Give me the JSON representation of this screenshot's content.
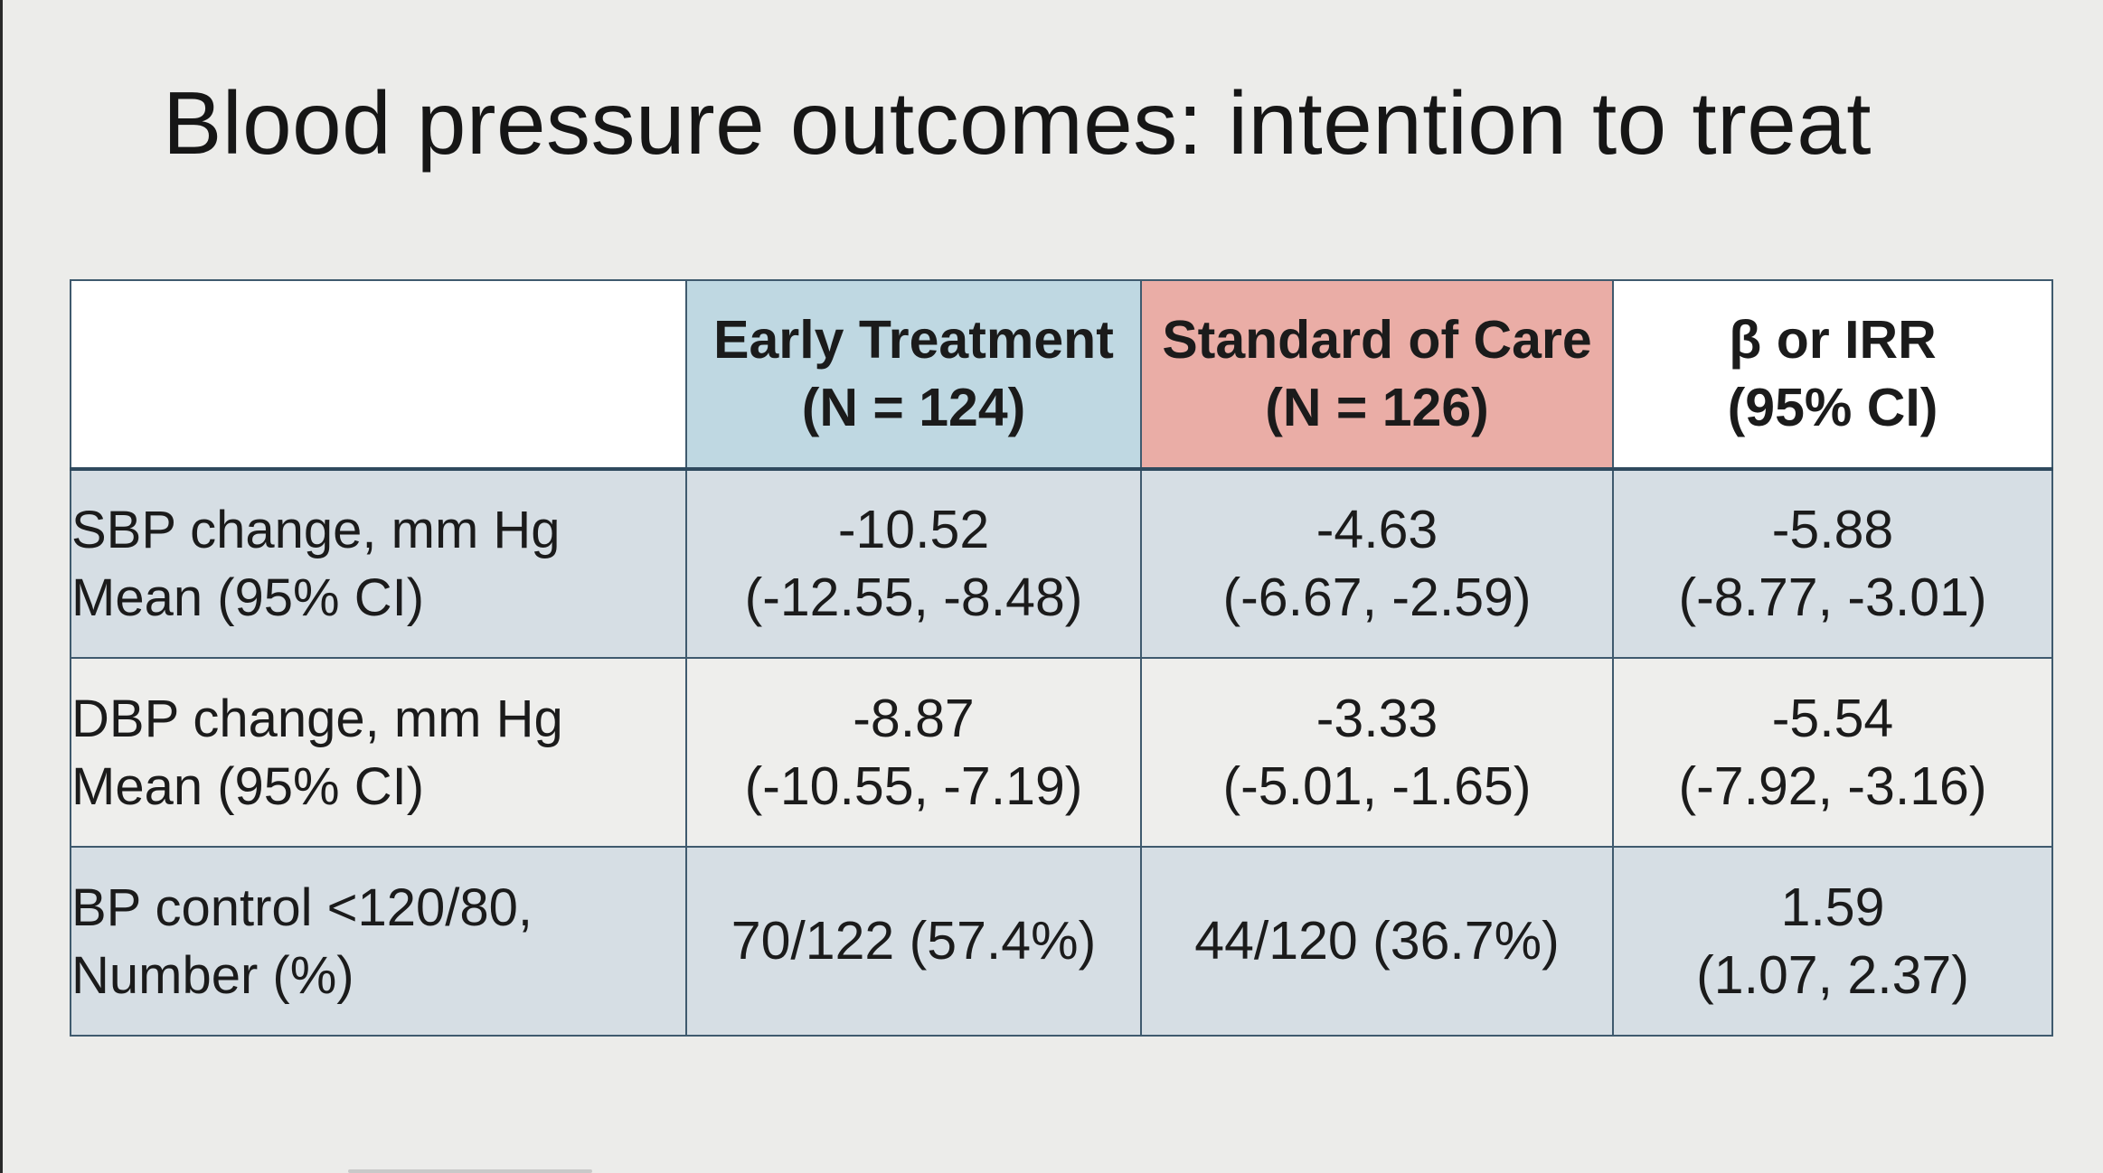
{
  "title": "Blood pressure outcomes: intention to treat",
  "table": {
    "headers": [
      {
        "line1": "",
        "line2": ""
      },
      {
        "line1": "Early Treatment",
        "line2": "(N = 124)"
      },
      {
        "line1": "Standard of Care",
        "line2": "(N = 126)"
      },
      {
        "line1": "β or IRR",
        "line2": "(95% CI)"
      }
    ],
    "rows": [
      {
        "label_line1": "SBP change, mm Hg",
        "label_line2": "Mean (95% CI)",
        "cells": [
          {
            "line1": "-10.52",
            "line2": "(-12.55, -8.48)"
          },
          {
            "line1": "-4.63",
            "line2": "(-6.67, -2.59)"
          },
          {
            "line1": "-5.88",
            "line2": "(-8.77, -3.01)"
          }
        ]
      },
      {
        "label_line1": "DBP change, mm Hg",
        "label_line2": "Mean (95% CI)",
        "cells": [
          {
            "line1": "-8.87",
            "line2": "(-10.55, -7.19)"
          },
          {
            "line1": "-3.33",
            "line2": "(-5.01, -1.65)"
          },
          {
            "line1": "-5.54",
            "line2": "(-7.92, -3.16)"
          }
        ]
      },
      {
        "label_line1": "BP control <120/80,",
        "label_line2": "Number (%)",
        "cells": [
          {
            "line1": "70/122 (57.4%)",
            "line2": ""
          },
          {
            "line1": "44/120 (36.7%)",
            "line2": ""
          },
          {
            "line1": "1.59",
            "line2": "(1.07, 2.37)"
          }
        ]
      }
    ]
  },
  "colors": {
    "background": "#ececea",
    "early_header": "#bfd8e2",
    "standard_header": "#eaada6",
    "row_shade": "#d6dee4",
    "row_plain": "#eeeeec",
    "border": "#3f5a6e"
  }
}
